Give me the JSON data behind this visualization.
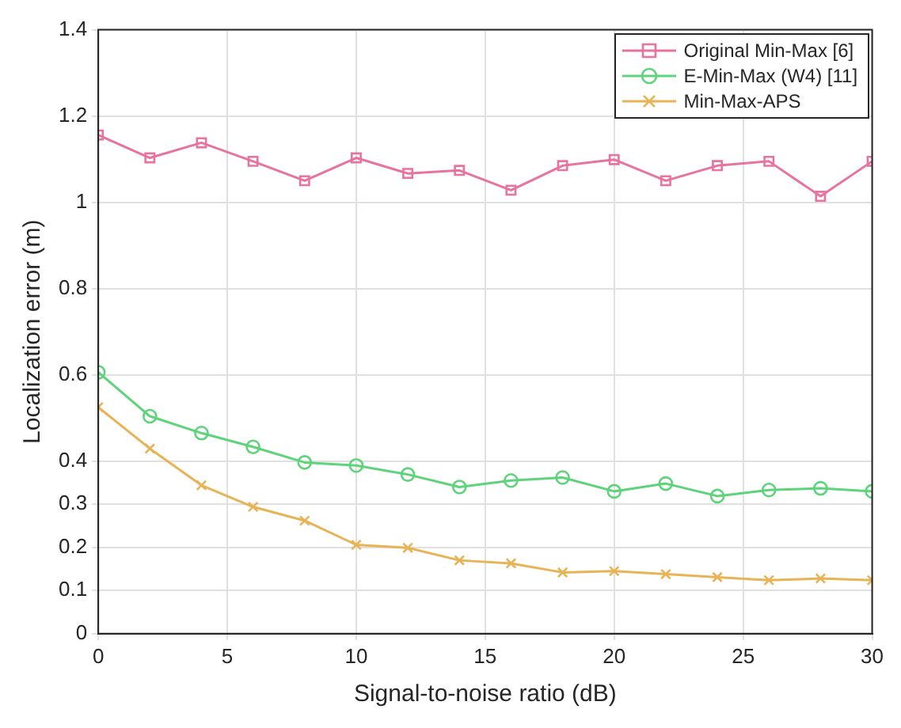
{
  "chart_data": {
    "type": "line",
    "xlabel": "Signal-to-noise ratio (dB)",
    "ylabel": "Localization error (m)",
    "x": [
      0,
      2,
      4,
      6,
      8,
      10,
      12,
      14,
      16,
      18,
      20,
      22,
      24,
      26,
      28,
      30
    ],
    "series": [
      {
        "name": "Original Min-Max [6]",
        "color": "#e8739e",
        "marker": "square",
        "values": [
          1.156,
          1.103,
          1.138,
          1.095,
          1.05,
          1.103,
          1.067,
          1.074,
          1.028,
          1.085,
          1.099,
          1.05,
          1.085,
          1.095,
          1.014,
          1.095
        ]
      },
      {
        "name": "E-Min-Max (W4) [11]",
        "color": "#5dd37a",
        "marker": "circle",
        "values": [
          0.606,
          0.504,
          0.465,
          0.433,
          0.397,
          0.39,
          0.369,
          0.34,
          0.355,
          0.362,
          0.33,
          0.348,
          0.319,
          0.333,
          0.337,
          0.33
        ]
      },
      {
        "name": "Min-Max-APS",
        "color": "#e8b355",
        "marker": "cross",
        "values": [
          0.525,
          0.429,
          0.344,
          0.294,
          0.262,
          0.206,
          0.199,
          0.17,
          0.163,
          0.142,
          0.145,
          0.138,
          0.131,
          0.124,
          0.128,
          0.124
        ]
      }
    ],
    "xlim": [
      0,
      30
    ],
    "xticks": [
      0,
      5,
      10,
      15,
      20,
      25,
      30
    ],
    "ylim": [
      0,
      1.4
    ],
    "yticks": [
      0,
      0.1,
      0.2,
      0.3,
      0.4,
      0.6,
      0.8,
      1,
      1.2,
      1.4
    ],
    "grid": true,
    "legend": "top right",
    "line_style": "solid"
  }
}
